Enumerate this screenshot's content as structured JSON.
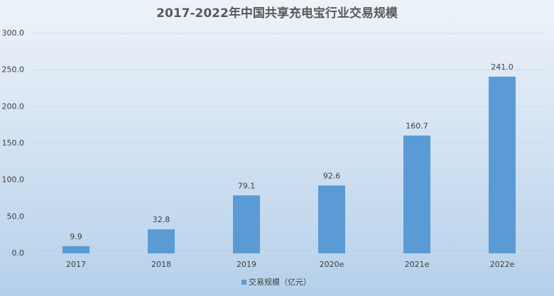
{
  "chart_data": {
    "type": "bar",
    "title": "2017-2022年中国共享充电宝行业交易规模",
    "categories": [
      "2017",
      "2018",
      "2019",
      "2020e",
      "2021e",
      "2022e"
    ],
    "series": [
      {
        "name": "交易规模（亿元）",
        "color": "#5b9bd5",
        "values": [
          9.9,
          32.8,
          79.1,
          92.6,
          160.7,
          241.0
        ],
        "value_labels": [
          "9.9",
          "32.8",
          "79.1",
          "92.6",
          "160.7",
          "241.0"
        ]
      }
    ],
    "ylim": [
      0,
      300
    ],
    "yticks": [
      {
        "value": 0,
        "label": "0.0"
      },
      {
        "value": 50,
        "label": "50.0"
      },
      {
        "value": 100,
        "label": "100.0"
      },
      {
        "value": 150,
        "label": "150.0"
      },
      {
        "value": 200,
        "label": "200.0"
      },
      {
        "value": 250,
        "label": "250.0"
      },
      {
        "value": 300,
        "label": "300.0"
      }
    ],
    "grid": true,
    "legend": "bottom"
  }
}
